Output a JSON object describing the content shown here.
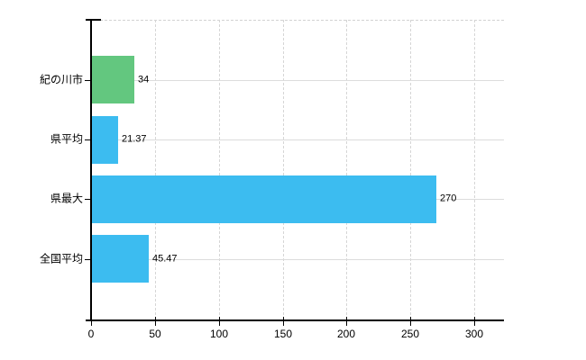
{
  "chart_data": {
    "type": "bar",
    "orientation": "horizontal",
    "title": "",
    "xlabel": "",
    "ylabel": "",
    "categories": [
      "紀の川市",
      "県平均",
      "県最大",
      "全国平均"
    ],
    "values": [
      34,
      21.37,
      270,
      45.47
    ],
    "value_labels": [
      "34",
      "21.37",
      "270",
      "45.47"
    ],
    "bar_colors": [
      "#63c77f",
      "#3cbcf0",
      "#3cbcf0",
      "#3cbcf0"
    ],
    "x_ticks": [
      0,
      50,
      100,
      150,
      200,
      250,
      300
    ],
    "x_tick_labels": [
      "0",
      "50",
      "100",
      "150",
      "200",
      "250",
      "300"
    ],
    "xlim": [
      0,
      323
    ],
    "grid": true,
    "legend": false,
    "colors": {
      "green_bar": "#63c77f",
      "blue_bar": "#3cbcf0",
      "axis": "#000000",
      "gridline_horizontal": "#dcdcdc",
      "gridline_vertical": "#d6d6d6",
      "background": "#ffffff"
    }
  }
}
